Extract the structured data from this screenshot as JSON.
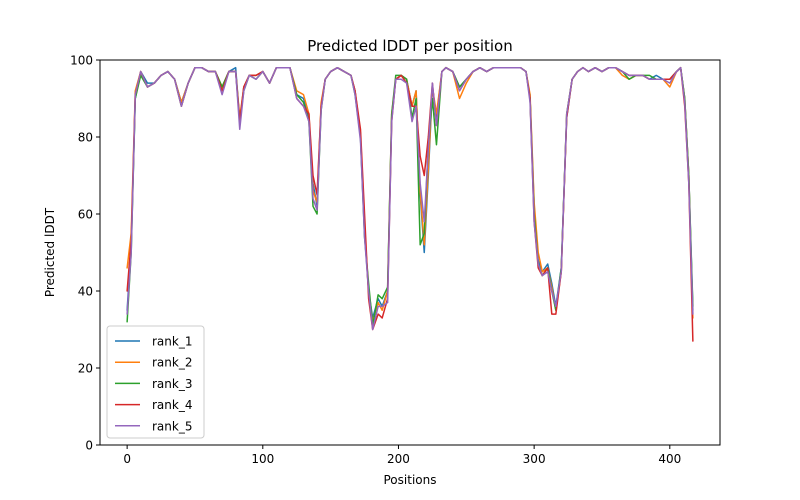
{
  "chart_data": {
    "type": "line",
    "title": "Predicted lDDT per position",
    "xlabel": "Positions",
    "ylabel": "Predicted lDDT",
    "xlim": [
      -20,
      437
    ],
    "ylim": [
      0,
      100
    ],
    "xticks": [
      0,
      100,
      200,
      300,
      400
    ],
    "yticks": [
      0,
      20,
      40,
      60,
      80,
      100
    ],
    "legend_position": "lower-left",
    "x": [
      0,
      3,
      6,
      10,
      15,
      20,
      25,
      30,
      35,
      40,
      45,
      50,
      55,
      60,
      65,
      70,
      75,
      80,
      83,
      86,
      90,
      95,
      100,
      105,
      110,
      115,
      120,
      125,
      130,
      134,
      137,
      140,
      143,
      146,
      150,
      155,
      160,
      165,
      168,
      172,
      175,
      178,
      181,
      185,
      188,
      192,
      195,
      198,
      202,
      206,
      210,
      213,
      216,
      219,
      222,
      225,
      228,
      232,
      235,
      240,
      245,
      250,
      255,
      260,
      265,
      270,
      275,
      280,
      285,
      290,
      294,
      297,
      300,
      303,
      306,
      310,
      313,
      316,
      320,
      324,
      328,
      332,
      336,
      340,
      345,
      350,
      355,
      360,
      365,
      370,
      375,
      380,
      385,
      390,
      395,
      400,
      405,
      408,
      411,
      414,
      417
    ],
    "series": [
      {
        "name": "rank_1",
        "color": "#1f77b4",
        "values": [
          35,
          52,
          90,
          97,
          94,
          94,
          96,
          97,
          95,
          89,
          94,
          98,
          98,
          97,
          97,
          93,
          97,
          98,
          84,
          93,
          96,
          96,
          97,
          94,
          98,
          98,
          98,
          91,
          90,
          85,
          68,
          62,
          88,
          95,
          97,
          98,
          97,
          96,
          92,
          80,
          55,
          40,
          33,
          38,
          36,
          40,
          85,
          95,
          96,
          95,
          88,
          92,
          65,
          50,
          70,
          93,
          85,
          97,
          98,
          97,
          93,
          95,
          97,
          98,
          97,
          98,
          98,
          98,
          98,
          98,
          97,
          90,
          62,
          48,
          45,
          47,
          42,
          36,
          46,
          85,
          95,
          97,
          98,
          97,
          98,
          97,
          98,
          98,
          97,
          96,
          96,
          96,
          95,
          96,
          95,
          95,
          97,
          98,
          90,
          70,
          35
        ]
      },
      {
        "name": "rank_2",
        "color": "#ff7f0e",
        "values": [
          46,
          55,
          92,
          97,
          93,
          94,
          96,
          97,
          95,
          89,
          94,
          98,
          98,
          97,
          97,
          93,
          97,
          97,
          85,
          93,
          96,
          96,
          97,
          94,
          98,
          98,
          98,
          92,
          91,
          86,
          66,
          63,
          89,
          95,
          97,
          98,
          97,
          96,
          92,
          81,
          56,
          40,
          32,
          37,
          35,
          40,
          86,
          95,
          96,
          95,
          88,
          92,
          66,
          52,
          72,
          93,
          86,
          97,
          98,
          97,
          90,
          94,
          97,
          98,
          97,
          98,
          98,
          98,
          98,
          98,
          97,
          91,
          63,
          50,
          45,
          46,
          41,
          35,
          45,
          86,
          95,
          97,
          98,
          97,
          98,
          97,
          98,
          98,
          96,
          95,
          96,
          96,
          95,
          95,
          95,
          93,
          97,
          98,
          90,
          70,
          33
        ]
      },
      {
        "name": "rank_3",
        "color": "#2ca02c",
        "values": [
          32,
          50,
          90,
          96,
          93,
          94,
          96,
          97,
          95,
          88,
          94,
          98,
          98,
          97,
          97,
          93,
          97,
          97,
          84,
          92,
          96,
          95,
          97,
          94,
          98,
          98,
          98,
          91,
          89,
          84,
          62,
          60,
          87,
          95,
          97,
          98,
          97,
          96,
          91,
          80,
          54,
          42,
          31,
          39,
          38,
          41,
          86,
          96,
          96,
          95,
          85,
          90,
          52,
          55,
          78,
          90,
          78,
          97,
          98,
          97,
          93,
          95,
          97,
          98,
          97,
          98,
          98,
          98,
          98,
          98,
          97,
          90,
          60,
          47,
          44,
          46,
          40,
          35,
          46,
          86,
          95,
          97,
          98,
          97,
          98,
          97,
          98,
          98,
          97,
          95,
          96,
          96,
          96,
          95,
          95,
          95,
          97,
          98,
          90,
          70,
          36
        ]
      },
      {
        "name": "rank_4",
        "color": "#d62728",
        "values": [
          40,
          53,
          91,
          97,
          93,
          94,
          96,
          97,
          95,
          88,
          94,
          98,
          98,
          97,
          97,
          92,
          97,
          97,
          84,
          93,
          96,
          96,
          97,
          94,
          98,
          98,
          98,
          90,
          88,
          86,
          70,
          65,
          88,
          95,
          97,
          98,
          97,
          96,
          92,
          82,
          60,
          38,
          30,
          34,
          33,
          38,
          84,
          95,
          96,
          94,
          88,
          88,
          75,
          70,
          80,
          94,
          83,
          97,
          98,
          97,
          92,
          95,
          97,
          98,
          97,
          98,
          98,
          98,
          98,
          98,
          97,
          90,
          58,
          46,
          44,
          46,
          34,
          34,
          45,
          85,
          95,
          97,
          98,
          97,
          98,
          97,
          98,
          98,
          97,
          96,
          96,
          96,
          95,
          95,
          95,
          95,
          97,
          98,
          88,
          68,
          27
        ]
      },
      {
        "name": "rank_5",
        "color": "#9467bd",
        "values": [
          34,
          50,
          91,
          97,
          93,
          94,
          96,
          97,
          95,
          88,
          94,
          98,
          98,
          97,
          97,
          91,
          97,
          97,
          82,
          92,
          96,
          95,
          97,
          94,
          98,
          98,
          98,
          90,
          88,
          84,
          64,
          61,
          87,
          95,
          97,
          98,
          97,
          96,
          91,
          79,
          54,
          40,
          30,
          36,
          36,
          37,
          84,
          95,
          95,
          94,
          84,
          88,
          68,
          58,
          77,
          94,
          83,
          97,
          98,
          97,
          92,
          95,
          97,
          98,
          97,
          98,
          98,
          98,
          98,
          98,
          97,
          89,
          58,
          47,
          44,
          45,
          40,
          36,
          45,
          86,
          95,
          97,
          98,
          97,
          98,
          97,
          98,
          98,
          97,
          96,
          96,
          96,
          95,
          95,
          95,
          94,
          97,
          98,
          89,
          68,
          34
        ]
      }
    ]
  }
}
